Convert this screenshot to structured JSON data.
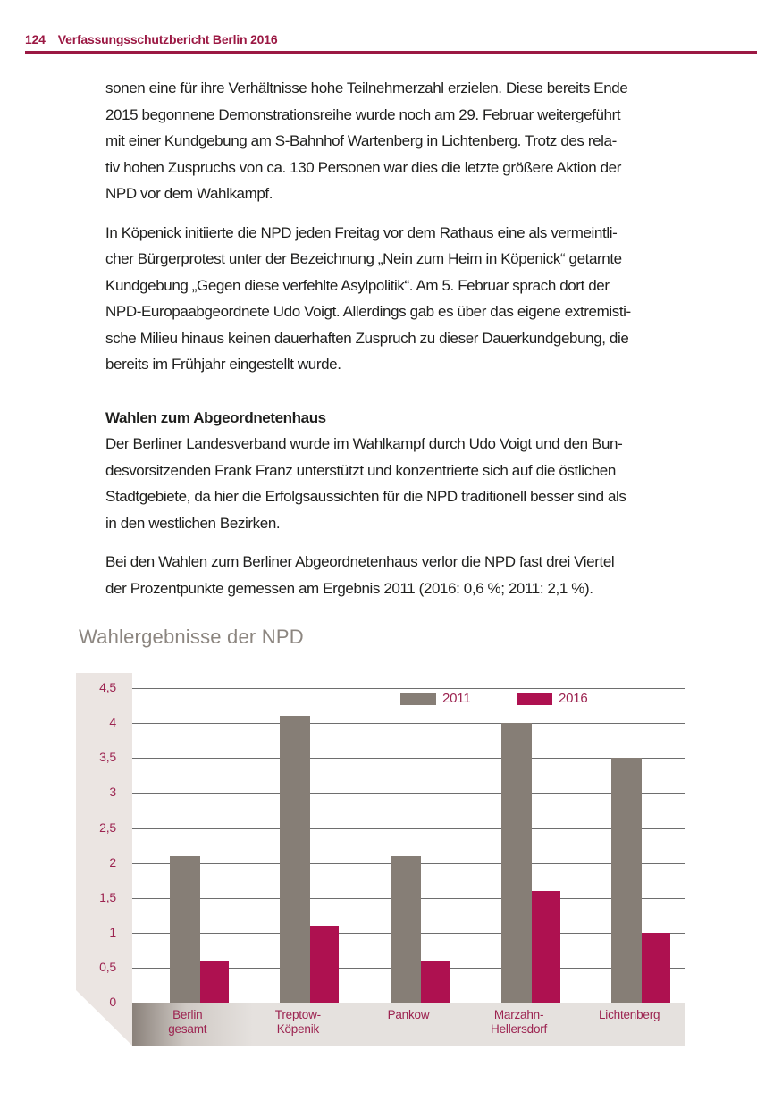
{
  "page": {
    "header": {
      "page_number": "124",
      "title": "Verfassungsschutzbericht Berlin 2016"
    },
    "body": {
      "p1_lines": [
        "sonen eine für ihre Verhältnisse hohe Teilnehmerzahl erzielen. Diese bereits Ende",
        "2015 begonnene Demonstrationsreihe wurde noch am 29. Februar weitergeführt",
        "mit einer Kundgebung am S-Bahnhof Wartenberg in Lichtenberg. Trotz des rela-",
        "tiv hohen Zuspruchs von ca. 130 Personen war dies die letzte größere Aktion der",
        "NPD vor dem Wahlkampf."
      ],
      "p2_lines": [
        "In Köpenick initiierte die NPD jeden Freitag vor dem Rathaus eine als vermeintli-",
        "cher Bürgerprotest unter der Bezeichnung „Nein zum Heim in Köpenick“ getarnte",
        "Kundgebung „Gegen diese verfehlte Asylpolitik“. Am 5. Februar sprach dort der",
        "NPD-Europaabgeordnete Udo Voigt. Allerdings gab es über das eigene extremisti-",
        "sche Milieu hinaus keinen dauerhaften Zuspruch zu dieser Dauerkundgebung, die",
        "bereits im Frühjahr eingestellt wurde."
      ],
      "section_heading": "Wahlen zum Abgeordnetenhaus",
      "p3_lines": [
        "Der Berliner Landesverband wurde im Wahlkampf durch Udo Voigt und den Bun-",
        "desvorsitzenden Frank Franz unterstützt und konzentrierte sich auf die östlichen",
        "Stadtgebiete, da hier die Erfolgsaussichten für die NPD traditionell besser sind als",
        "in den westlichen Bezirken."
      ],
      "p4_lines": [
        "Bei den Wahlen zum Berliner Abgeordnetenhaus verlor die NPD fast drei Viertel",
        "der Prozentpunkte gemessen am Ergebnis 2011 (2016: 0,6 %; 2011: 2,1 %)."
      ]
    }
  },
  "chart": {
    "title": "Wahlergebnisse der NPD",
    "legend": [
      {
        "label": "2011",
        "color": "#867E76"
      },
      {
        "label": "2016",
        "color": "#AE1150"
      }
    ],
    "y_ticks": [
      {
        "label": "4,5",
        "v": 4.5
      },
      {
        "label": "4",
        "v": 4.0
      },
      {
        "label": "3,5",
        "v": 3.5
      },
      {
        "label": "3",
        "v": 3.0
      },
      {
        "label": "2,5",
        "v": 2.5
      },
      {
        "label": "2",
        "v": 2.0
      },
      {
        "label": "1,5",
        "v": 1.5
      },
      {
        "label": "1",
        "v": 1.0
      },
      {
        "label": "0,5",
        "v": 0.5
      },
      {
        "label": "0",
        "v": 0.0
      }
    ],
    "x_labels": [
      [
        "Berlin",
        "gesamt"
      ],
      [
        "Treptow-",
        "Köpenik"
      ],
      [
        "Pankow"
      ],
      [
        "Marzahn-",
        "Hellersdorf"
      ],
      [
        "Lichtenberg"
      ]
    ]
  },
  "chart_data": {
    "type": "bar",
    "title": "Wahlergebnisse der NPD",
    "categories": [
      "Berlin gesamt",
      "Treptow-Köpenik",
      "Pankow",
      "Marzahn-Hellersdorf",
      "Lichtenberg"
    ],
    "series": [
      {
        "name": "2011",
        "values": [
          2.1,
          4.1,
          2.1,
          4.0,
          3.5
        ]
      },
      {
        "name": "2016",
        "values": [
          0.6,
          1.1,
          0.6,
          1.6,
          1.0
        ]
      }
    ],
    "xlabel": "",
    "ylabel": "",
    "ylim": [
      0,
      4.5
    ],
    "ytick_step": 0.5,
    "grid": true,
    "legend_position": "top-center",
    "colors": {
      "2011": "#867E76",
      "2016": "#AE1150"
    }
  },
  "colors": {
    "accent_red": "#9B1843",
    "tick_red": "#9C2350",
    "bar_gray": "#867E76",
    "bar_crimson": "#AE1150",
    "band_bg": "#EBE5E2",
    "strip_bg": "#E5E1DE",
    "strip_shadow": "#8A817A",
    "gridline": "#6E6E6E",
    "body_text": "#1F1F1D",
    "chart_title_gray": "#8C8680"
  }
}
